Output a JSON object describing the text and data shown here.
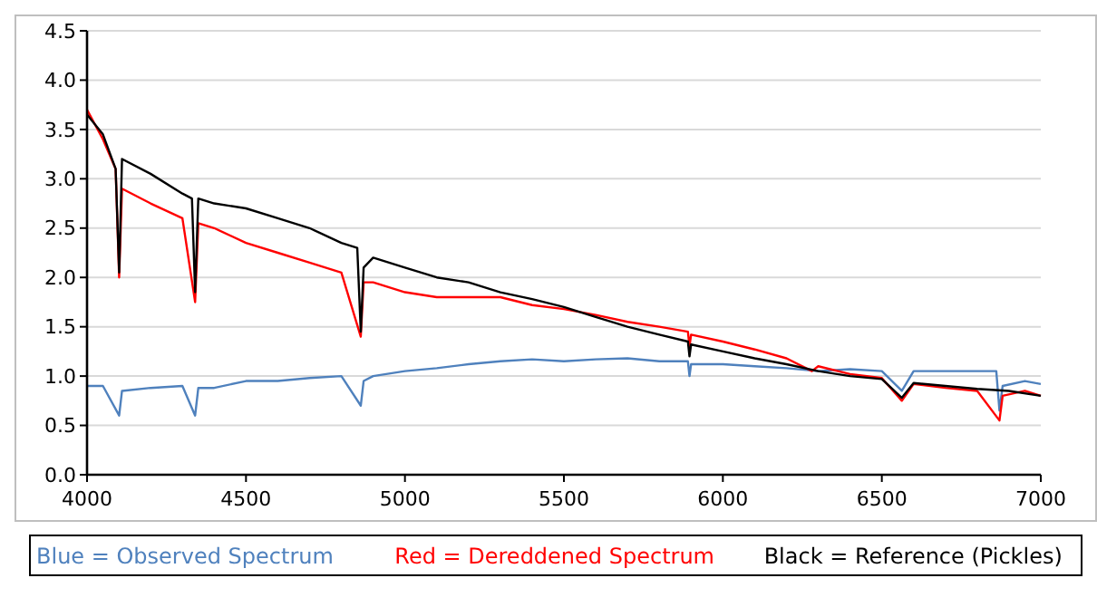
{
  "chart_data": {
    "type": "line",
    "xlim": [
      4000,
      7000
    ],
    "xticks": [
      4000,
      4500,
      5000,
      5500,
      6000,
      6500,
      7000
    ],
    "ylim": [
      0,
      4.5
    ],
    "yticks": [
      {
        "value": 0,
        "label": "0.0"
      },
      {
        "value": 0.5,
        "label": "0.5"
      },
      {
        "value": 1,
        "label": "1.0"
      },
      {
        "value": 1.5,
        "label": "1.5"
      },
      {
        "value": 2,
        "label": "2.0"
      },
      {
        "value": 2.5,
        "label": "2.5"
      },
      {
        "value": 3,
        "label": "3.0"
      },
      {
        "value": 3.5,
        "label": "3.5"
      },
      {
        "value": 4,
        "label": "4.0"
      },
      {
        "value": 4.5,
        "label": "4.5"
      }
    ],
    "grid": "y",
    "legend": "bottom",
    "marker": "none",
    "line_style": "solid",
    "series": [
      {
        "name": "Blue = Observed Spectrum",
        "color": "#4f81bd",
        "x": [
          4000,
          4050,
          4101,
          4110,
          4200,
          4300,
          4340,
          4350,
          4400,
          4500,
          4600,
          4700,
          4800,
          4861,
          4870,
          4900,
          5000,
          5100,
          5200,
          5300,
          5400,
          5500,
          5600,
          5700,
          5800,
          5890,
          5895,
          5900,
          6000,
          6100,
          6200,
          6300,
          6400,
          6500,
          6563,
          6600,
          6700,
          6800,
          6860,
          6870,
          6880,
          6950,
          7000
        ],
        "values": [
          0.9,
          0.9,
          0.6,
          0.85,
          0.88,
          0.9,
          0.6,
          0.88,
          0.88,
          0.95,
          0.95,
          0.98,
          1.0,
          0.7,
          0.95,
          1.0,
          1.05,
          1.08,
          1.12,
          1.15,
          1.17,
          1.15,
          1.17,
          1.18,
          1.15,
          1.15,
          1.0,
          1.12,
          1.12,
          1.1,
          1.08,
          1.05,
          1.07,
          1.05,
          0.85,
          1.05,
          1.05,
          1.05,
          1.05,
          0.65,
          0.9,
          0.95,
          0.92
        ]
      },
      {
        "name": "Red = Dereddened Spectrum",
        "color": "#ff0000",
        "x": [
          4000,
          4050,
          4090,
          4101,
          4110,
          4200,
          4300,
          4340,
          4350,
          4400,
          4500,
          4600,
          4700,
          4800,
          4861,
          4870,
          4900,
          5000,
          5100,
          5200,
          5300,
          5400,
          5500,
          5600,
          5700,
          5800,
          5890,
          5895,
          5900,
          6000,
          6100,
          6200,
          6280,
          6300,
          6400,
          6500,
          6563,
          6600,
          6700,
          6800,
          6870,
          6880,
          6950,
          7000
        ],
        "values": [
          3.7,
          3.4,
          3.1,
          2.0,
          2.9,
          2.75,
          2.6,
          1.75,
          2.55,
          2.5,
          2.35,
          2.25,
          2.15,
          2.05,
          1.4,
          1.95,
          1.95,
          1.85,
          1.8,
          1.8,
          1.8,
          1.72,
          1.68,
          1.62,
          1.55,
          1.5,
          1.45,
          1.3,
          1.42,
          1.35,
          1.27,
          1.18,
          1.05,
          1.1,
          1.02,
          0.98,
          0.75,
          0.92,
          0.88,
          0.85,
          0.55,
          0.8,
          0.85,
          0.8
        ]
      },
      {
        "name": "Black = Reference (Pickles)",
        "color": "#000000",
        "x": [
          4000,
          4050,
          4090,
          4101,
          4110,
          4200,
          4300,
          4330,
          4340,
          4350,
          4400,
          4500,
          4600,
          4700,
          4800,
          4850,
          4861,
          4870,
          4900,
          5000,
          5100,
          5200,
          5300,
          5400,
          5500,
          5600,
          5700,
          5800,
          5890,
          5895,
          5900,
          6000,
          6100,
          6200,
          6300,
          6400,
          6500,
          6563,
          6600,
          6700,
          6800,
          6900,
          7000
        ],
        "values": [
          3.65,
          3.45,
          3.1,
          2.05,
          3.2,
          3.05,
          2.85,
          2.8,
          1.85,
          2.8,
          2.75,
          2.7,
          2.6,
          2.5,
          2.35,
          2.3,
          1.45,
          2.1,
          2.2,
          2.1,
          2.0,
          1.95,
          1.85,
          1.78,
          1.7,
          1.6,
          1.5,
          1.42,
          1.35,
          1.2,
          1.32,
          1.25,
          1.18,
          1.12,
          1.05,
          1.0,
          0.97,
          0.78,
          0.93,
          0.9,
          0.87,
          0.85,
          0.8
        ]
      }
    ]
  }
}
